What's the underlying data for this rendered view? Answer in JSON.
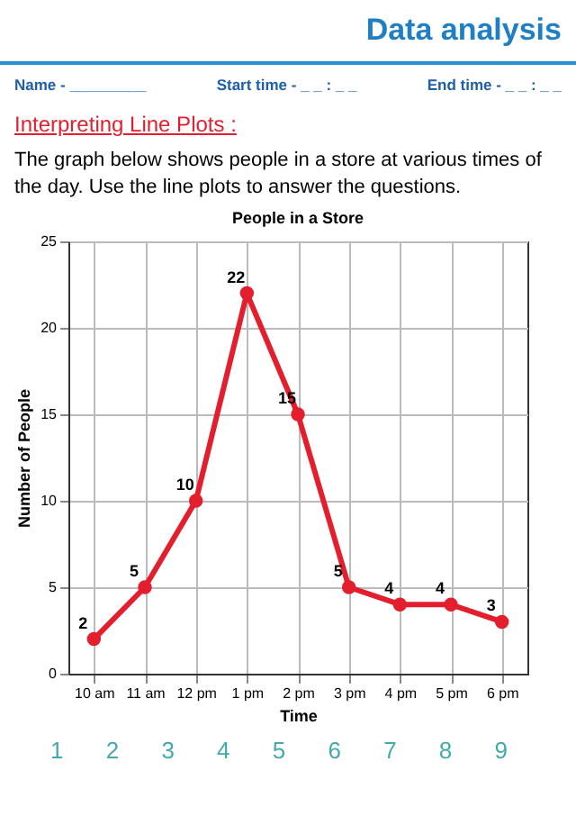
{
  "chart_data": {
    "type": "line",
    "title": "People in a Store",
    "xlabel": "Time",
    "ylabel": "Number of People",
    "annotations": [
      "Data analysis",
      "Name - _________",
      "Start time - _ _ : _ _",
      "End time - _ _ : _ _",
      "Interpreting Line Plots :",
      "The graph below shows people in a store at various times of the day. Use the line plots to answer the questions.",
      "1 2 3 4 5 6 7 8 9"
    ],
    "categories": [
      "10 am",
      "11 am",
      "12 pm",
      "1 pm",
      "2 pm",
      "3 pm",
      "4 pm",
      "5 pm",
      "6 pm"
    ],
    "series": [
      {
        "color": "#e31e2d",
        "values": [
          2,
          5,
          10,
          22,
          15,
          5,
          4,
          4,
          3
        ]
      }
    ],
    "ylim": [
      0,
      25
    ],
    "yticks": [
      0,
      5,
      10,
      15,
      20,
      25
    ],
    "grid": true,
    "marker": "circle",
    "line_style": "solid",
    "data_labels": true
  }
}
